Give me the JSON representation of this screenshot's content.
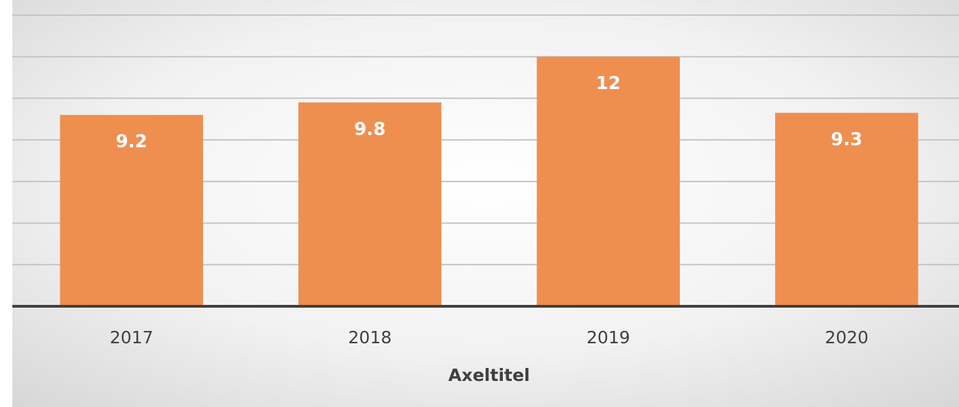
{
  "chart_data": {
    "type": "bar",
    "x_label": "Axeltitel",
    "categories": [
      "2017",
      "2018",
      "2019",
      "2020"
    ],
    "values": [
      9.2,
      9.8,
      12,
      9.3
    ],
    "color": "#ee8f50",
    "ylim": [
      0,
      14
    ],
    "yticks": [
      0,
      2,
      4,
      6,
      8,
      10,
      12,
      14
    ],
    "grid": true
  }
}
